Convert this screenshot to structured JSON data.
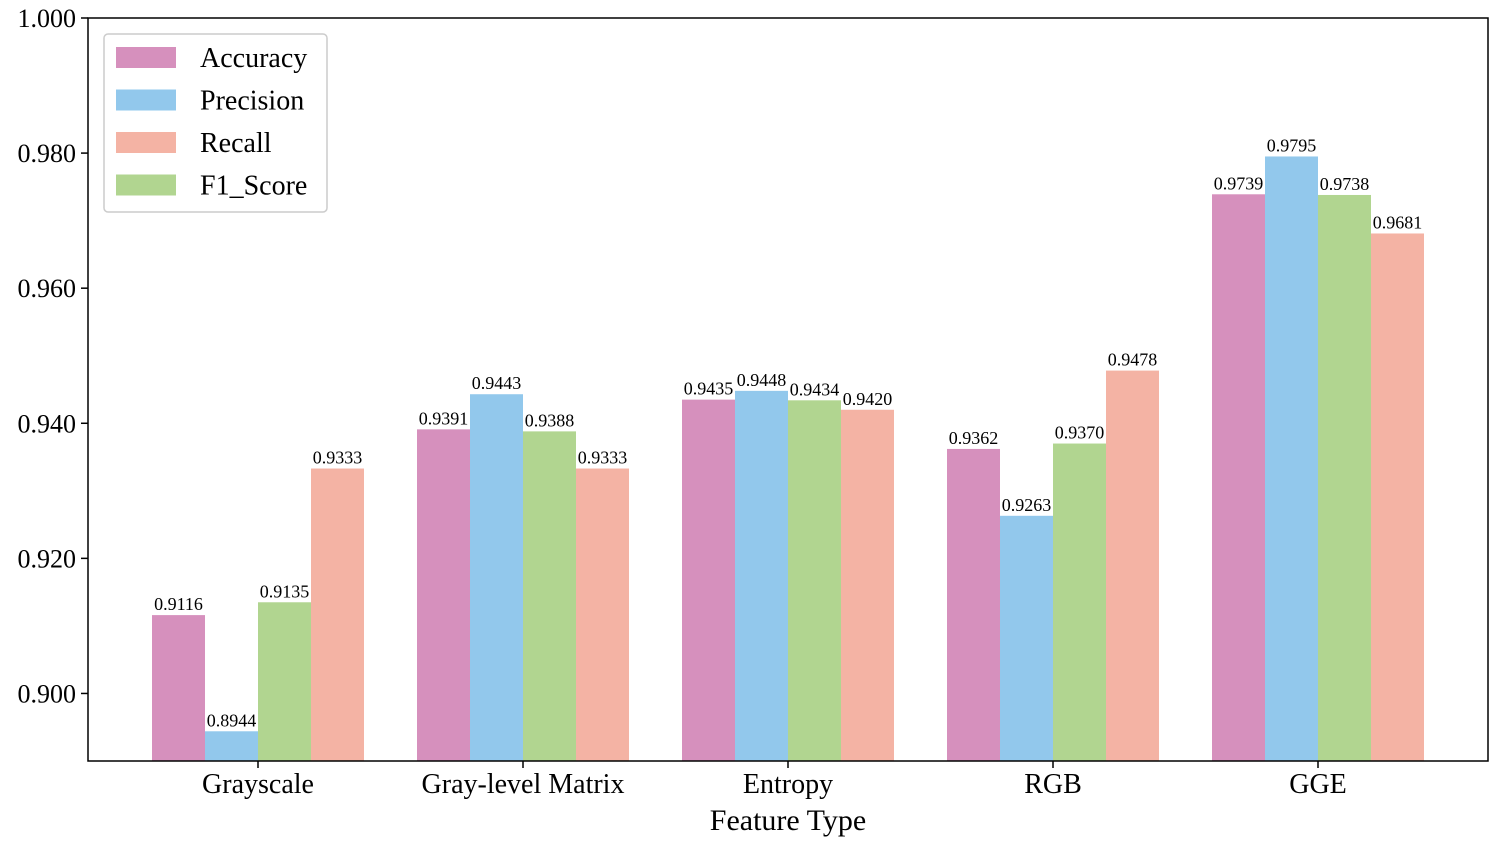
{
  "chart_data": {
    "type": "bar",
    "xlabel": "Feature Type",
    "ylabel": "",
    "ylim": [
      0.89,
      1.0
    ],
    "yticks": [
      "0.900",
      "0.920",
      "0.940",
      "0.960",
      "0.980",
      "1.000"
    ],
    "legend_position": "top-left",
    "grid": false,
    "categories": [
      "Grayscale",
      "Gray-level Matrix",
      "Entropy",
      "RGB",
      "GGE"
    ],
    "series": [
      {
        "name": "Accuracy",
        "color": "#d690bd",
        "values": [
          0.9116,
          0.9391,
          0.9435,
          0.9362,
          0.9739
        ],
        "labels": [
          "0.9116",
          "0.9391",
          "0.9435",
          "0.9362",
          "0.9739"
        ]
      },
      {
        "name": "Precision",
        "color": "#92c8ec",
        "values": [
          0.8944,
          0.9443,
          0.9448,
          0.9263,
          0.9795
        ],
        "labels": [
          "0.8944",
          "0.9443",
          "0.9448",
          "0.9263",
          "0.9795"
        ]
      },
      {
        "name": "F1_Score",
        "color": "#b1d590",
        "values": [
          0.9135,
          0.9388,
          0.9434,
          0.937,
          0.9738
        ],
        "labels": [
          "0.9135",
          "0.9388",
          "0.9434",
          "0.9370",
          "0.9738"
        ]
      },
      {
        "name": "Recall",
        "color": "#f4b3a4",
        "values": [
          0.9333,
          0.9333,
          0.942,
          0.9478,
          0.9681
        ],
        "labels": [
          "0.9333",
          "0.9333",
          "0.9420",
          "0.9478",
          "0.9681"
        ]
      }
    ],
    "legend_order": [
      "Accuracy",
      "Precision",
      "Recall",
      "F1_Score"
    ]
  }
}
